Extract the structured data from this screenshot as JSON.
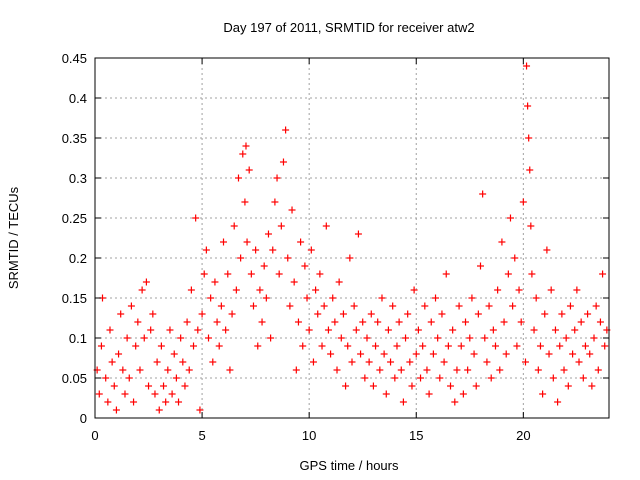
{
  "chart_data": {
    "type": "scatter",
    "title": "Day 197 of 2011, SRMTID for receiver atw2",
    "xlabel": "GPS time / hours",
    "ylabel": "SRMTID / TECUs",
    "xlim": [
      0,
      24
    ],
    "ylim": [
      0,
      0.45
    ],
    "x_ticks": [
      "0",
      "5",
      "10",
      "15",
      "20"
    ],
    "y_ticks": [
      "0",
      "0.05",
      "0.1",
      "0.15",
      "0.2",
      "0.25",
      "0.3",
      "0.35",
      "0.4",
      "0.45"
    ],
    "grid": true,
    "marker": "plus",
    "color": "#ff0000",
    "series": [
      {
        "name": "SRMTID",
        "points": [
          [
            0.1,
            0.06
          ],
          [
            0.2,
            0.03
          ],
          [
            0.3,
            0.09
          ],
          [
            0.35,
            0.15
          ],
          [
            0.5,
            0.05
          ],
          [
            0.6,
            0.02
          ],
          [
            0.7,
            0.11
          ],
          [
            0.8,
            0.07
          ],
          [
            0.9,
            0.04
          ],
          [
            1.0,
            0.01
          ],
          [
            1.1,
            0.08
          ],
          [
            1.2,
            0.13
          ],
          [
            1.3,
            0.06
          ],
          [
            1.4,
            0.03
          ],
          [
            1.5,
            0.1
          ],
          [
            1.6,
            0.05
          ],
          [
            1.7,
            0.14
          ],
          [
            1.8,
            0.02
          ],
          [
            1.9,
            0.09
          ],
          [
            2.0,
            0.12
          ],
          [
            2.1,
            0.06
          ],
          [
            2.2,
            0.16
          ],
          [
            2.3,
            0.1
          ],
          [
            2.4,
            0.17
          ],
          [
            2.5,
            0.04
          ],
          [
            2.6,
            0.11
          ],
          [
            2.7,
            0.13
          ],
          [
            2.8,
            0.03
          ],
          [
            2.9,
            0.07
          ],
          [
            3.0,
            0.01
          ],
          [
            3.1,
            0.09
          ],
          [
            3.2,
            0.04
          ],
          [
            3.3,
            0.02
          ],
          [
            3.4,
            0.06
          ],
          [
            3.5,
            0.11
          ],
          [
            3.6,
            0.03
          ],
          [
            3.7,
            0.08
          ],
          [
            3.8,
            0.05
          ],
          [
            3.9,
            0.02
          ],
          [
            4.0,
            0.1
          ],
          [
            4.1,
            0.07
          ],
          [
            4.2,
            0.04
          ],
          [
            4.3,
            0.12
          ],
          [
            4.4,
            0.06
          ],
          [
            4.5,
            0.16
          ],
          [
            4.6,
            0.09
          ],
          [
            4.7,
            0.25
          ],
          [
            4.8,
            0.11
          ],
          [
            4.9,
            0.01
          ],
          [
            5.0,
            0.13
          ],
          [
            5.1,
            0.18
          ],
          [
            5.2,
            0.21
          ],
          [
            5.3,
            0.1
          ],
          [
            5.4,
            0.15
          ],
          [
            5.5,
            0.07
          ],
          [
            5.6,
            0.17
          ],
          [
            5.7,
            0.12
          ],
          [
            5.8,
            0.09
          ],
          [
            5.9,
            0.14
          ],
          [
            6.0,
            0.22
          ],
          [
            6.1,
            0.11
          ],
          [
            6.2,
            0.18
          ],
          [
            6.3,
            0.06
          ],
          [
            6.4,
            0.13
          ],
          [
            6.5,
            0.24
          ],
          [
            6.6,
            0.16
          ],
          [
            6.7,
            0.3
          ],
          [
            6.8,
            0.2
          ],
          [
            6.9,
            0.33
          ],
          [
            7.0,
            0.27
          ],
          [
            7.05,
            0.34
          ],
          [
            7.1,
            0.22
          ],
          [
            7.2,
            0.31
          ],
          [
            7.3,
            0.18
          ],
          [
            7.4,
            0.14
          ],
          [
            7.5,
            0.21
          ],
          [
            7.6,
            0.09
          ],
          [
            7.7,
            0.16
          ],
          [
            7.8,
            0.12
          ],
          [
            7.9,
            0.19
          ],
          [
            8.0,
            0.15
          ],
          [
            8.1,
            0.23
          ],
          [
            8.2,
            0.1
          ],
          [
            8.3,
            0.21
          ],
          [
            8.4,
            0.27
          ],
          [
            8.5,
            0.3
          ],
          [
            8.6,
            0.18
          ],
          [
            8.7,
            0.24
          ],
          [
            8.8,
            0.32
          ],
          [
            8.9,
            0.36
          ],
          [
            9.0,
            0.2
          ],
          [
            9.1,
            0.14
          ],
          [
            9.2,
            0.26
          ],
          [
            9.3,
            0.17
          ],
          [
            9.4,
            0.06
          ],
          [
            9.5,
            0.12
          ],
          [
            9.6,
            0.22
          ],
          [
            9.7,
            0.09
          ],
          [
            9.8,
            0.19
          ],
          [
            9.9,
            0.15
          ],
          [
            10.0,
            0.11
          ],
          [
            10.1,
            0.21
          ],
          [
            10.2,
            0.07
          ],
          [
            10.3,
            0.16
          ],
          [
            10.4,
            0.13
          ],
          [
            10.5,
            0.18
          ],
          [
            10.6,
            0.09
          ],
          [
            10.7,
            0.14
          ],
          [
            10.8,
            0.24
          ],
          [
            10.9,
            0.11
          ],
          [
            11.0,
            0.08
          ],
          [
            11.1,
            0.15
          ],
          [
            11.2,
            0.12
          ],
          [
            11.3,
            0.06
          ],
          [
            11.4,
            0.17
          ],
          [
            11.5,
            0.1
          ],
          [
            11.6,
            0.13
          ],
          [
            11.7,
            0.04
          ],
          [
            11.8,
            0.09
          ],
          [
            11.9,
            0.2
          ],
          [
            12.0,
            0.07
          ],
          [
            12.1,
            0.14
          ],
          [
            12.2,
            0.11
          ],
          [
            12.3,
            0.23
          ],
          [
            12.4,
            0.08
          ],
          [
            12.5,
            0.12
          ],
          [
            12.6,
            0.05
          ],
          [
            12.7,
            0.1
          ],
          [
            12.8,
            0.07
          ],
          [
            12.9,
            0.13
          ],
          [
            13.0,
            0.04
          ],
          [
            13.1,
            0.09
          ],
          [
            13.2,
            0.12
          ],
          [
            13.3,
            0.06
          ],
          [
            13.4,
            0.15
          ],
          [
            13.5,
            0.08
          ],
          [
            13.6,
            0.03
          ],
          [
            13.7,
            0.11
          ],
          [
            13.8,
            0.07
          ],
          [
            13.9,
            0.14
          ],
          [
            14.0,
            0.05
          ],
          [
            14.1,
            0.09
          ],
          [
            14.2,
            0.12
          ],
          [
            14.3,
            0.06
          ],
          [
            14.4,
            0.02
          ],
          [
            14.5,
            0.1
          ],
          [
            14.6,
            0.13
          ],
          [
            14.7,
            0.07
          ],
          [
            14.8,
            0.04
          ],
          [
            14.9,
            0.16
          ],
          [
            15.0,
            0.08
          ],
          [
            15.1,
            0.11
          ],
          [
            15.2,
            0.05
          ],
          [
            15.3,
            0.09
          ],
          [
            15.4,
            0.14
          ],
          [
            15.5,
            0.06
          ],
          [
            15.6,
            0.03
          ],
          [
            15.7,
            0.12
          ],
          [
            15.8,
            0.08
          ],
          [
            15.9,
            0.15
          ],
          [
            16.0,
            0.1
          ],
          [
            16.1,
            0.05
          ],
          [
            16.2,
            0.13
          ],
          [
            16.3,
            0.07
          ],
          [
            16.4,
            0.18
          ],
          [
            16.5,
            0.09
          ],
          [
            16.6,
            0.04
          ],
          [
            16.7,
            0.11
          ],
          [
            16.8,
            0.02
          ],
          [
            16.9,
            0.06
          ],
          [
            17.0,
            0.14
          ],
          [
            17.1,
            0.09
          ],
          [
            17.2,
            0.03
          ],
          [
            17.3,
            0.12
          ],
          [
            17.4,
            0.06
          ],
          [
            17.5,
            0.1
          ],
          [
            17.6,
            0.15
          ],
          [
            17.7,
            0.08
          ],
          [
            17.8,
            0.04
          ],
          [
            17.9,
            0.13
          ],
          [
            18.0,
            0.19
          ],
          [
            18.1,
            0.28
          ],
          [
            18.2,
            0.1
          ],
          [
            18.3,
            0.07
          ],
          [
            18.4,
            0.14
          ],
          [
            18.5,
            0.05
          ],
          [
            18.6,
            0.11
          ],
          [
            18.7,
            0.09
          ],
          [
            18.8,
            0.16
          ],
          [
            18.9,
            0.06
          ],
          [
            19.0,
            0.22
          ],
          [
            19.1,
            0.12
          ],
          [
            19.2,
            0.08
          ],
          [
            19.3,
            0.18
          ],
          [
            19.4,
            0.25
          ],
          [
            19.5,
            0.14
          ],
          [
            19.6,
            0.2
          ],
          [
            19.7,
            0.09
          ],
          [
            19.8,
            0.16
          ],
          [
            19.9,
            0.12
          ],
          [
            20.0,
            0.27
          ],
          [
            20.1,
            0.07
          ],
          [
            20.15,
            0.44
          ],
          [
            20.2,
            0.39
          ],
          [
            20.25,
            0.35
          ],
          [
            20.3,
            0.31
          ],
          [
            20.35,
            0.24
          ],
          [
            20.4,
            0.18
          ],
          [
            20.5,
            0.11
          ],
          [
            20.6,
            0.15
          ],
          [
            20.7,
            0.06
          ],
          [
            20.8,
            0.09
          ],
          [
            20.9,
            0.03
          ],
          [
            21.0,
            0.13
          ],
          [
            21.1,
            0.21
          ],
          [
            21.2,
            0.08
          ],
          [
            21.3,
            0.16
          ],
          [
            21.4,
            0.05
          ],
          [
            21.5,
            0.11
          ],
          [
            21.6,
            0.02
          ],
          [
            21.7,
            0.09
          ],
          [
            21.8,
            0.13
          ],
          [
            21.9,
            0.06
          ],
          [
            22.0,
            0.1
          ],
          [
            22.1,
            0.04
          ],
          [
            22.2,
            0.14
          ],
          [
            22.3,
            0.08
          ],
          [
            22.4,
            0.11
          ],
          [
            22.5,
            0.16
          ],
          [
            22.6,
            0.07
          ],
          [
            22.7,
            0.12
          ],
          [
            22.8,
            0.05
          ],
          [
            22.9,
            0.09
          ],
          [
            23.0,
            0.13
          ],
          [
            23.1,
            0.08
          ],
          [
            23.2,
            0.04
          ],
          [
            23.3,
            0.1
          ],
          [
            23.4,
            0.14
          ],
          [
            23.5,
            0.06
          ],
          [
            23.6,
            0.12
          ],
          [
            23.7,
            0.18
          ],
          [
            23.8,
            0.09
          ],
          [
            23.9,
            0.11
          ]
        ]
      }
    ]
  }
}
